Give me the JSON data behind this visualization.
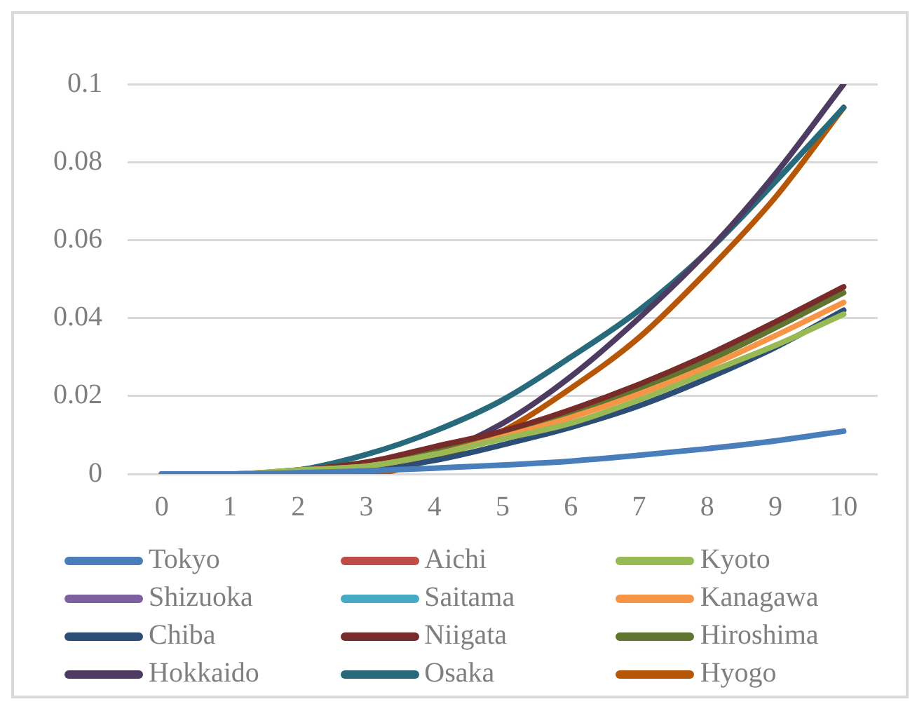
{
  "chart_data": {
    "type": "line",
    "categories": [
      "0",
      "1",
      "2",
      "3",
      "4",
      "5",
      "6",
      "7",
      "8",
      "9",
      "10"
    ],
    "series": [
      {
        "name": "Tokyo",
        "color": "#4a7ebb",
        "values": [
          0,
          0,
          0.0003,
          0.0008,
          0.0015,
          0.0023,
          0.0033,
          0.0048,
          0.0065,
          0.0085,
          0.011
        ]
      },
      {
        "name": "Aichi",
        "color": "#be4b48",
        "values": [
          null,
          null,
          null,
          null,
          null,
          null,
          null,
          null,
          null,
          null,
          null
        ]
      },
      {
        "name": "Kyoto",
        "color": "#98b954",
        "values": [
          0,
          0,
          0.001,
          0.002,
          0.005,
          0.009,
          0.013,
          0.019,
          0.026,
          0.033,
          0.041
        ]
      },
      {
        "name": "Shizuoka",
        "color": "#7d60a0",
        "values": [
          null,
          null,
          null,
          null,
          null,
          null,
          null,
          null,
          null,
          null,
          null
        ]
      },
      {
        "name": "Saitama",
        "color": "#46aac5",
        "values": [
          null,
          null,
          null,
          null,
          null,
          null,
          null,
          null,
          null,
          null,
          null
        ]
      },
      {
        "name": "Kanagawa",
        "color": "#f69546",
        "values": [
          0,
          0,
          0.001,
          0.002,
          0.005,
          0.0095,
          0.0145,
          0.0205,
          0.0275,
          0.0355,
          0.044
        ]
      },
      {
        "name": "Chiba",
        "color": "#2c4d75",
        "values": [
          0,
          0,
          0,
          0.001,
          0.0035,
          0.0075,
          0.012,
          0.0175,
          0.0245,
          0.0325,
          0.042
        ]
      },
      {
        "name": "Niigata",
        "color": "#772c2a",
        "values": [
          0,
          0,
          0.001,
          0.003,
          0.007,
          0.011,
          0.0165,
          0.023,
          0.0305,
          0.039,
          0.048
        ]
      },
      {
        "name": "Hiroshima",
        "color": "#5f7530",
        "values": [
          0,
          0,
          0.001,
          0.003,
          0.0065,
          0.0105,
          0.0155,
          0.022,
          0.029,
          0.0375,
          0.0465
        ]
      },
      {
        "name": "Hokkaido",
        "color": "#4d3b62",
        "values": [
          0,
          0,
          0,
          0.001,
          0.005,
          0.013,
          0.025,
          0.04,
          0.057,
          0.077,
          0.1
        ]
      },
      {
        "name": "Osaka",
        "color": "#276a7c",
        "values": [
          0,
          0,
          0.001,
          0.005,
          0.011,
          0.019,
          0.03,
          0.042,
          0.057,
          0.075,
          0.094
        ]
      },
      {
        "name": "Hyogo",
        "color": "#b65708",
        "values": [
          0,
          0,
          0,
          0,
          0.004,
          0.011,
          0.022,
          0.035,
          0.052,
          0.071,
          0.094
        ]
      }
    ],
    "ylim": [
      0,
      0.1
    ],
    "yticks": [
      0,
      0.02,
      0.04,
      0.06,
      0.08,
      0.1
    ],
    "grid": "y",
    "legend": "bottom",
    "marker": "none",
    "line_style": "solid"
  }
}
